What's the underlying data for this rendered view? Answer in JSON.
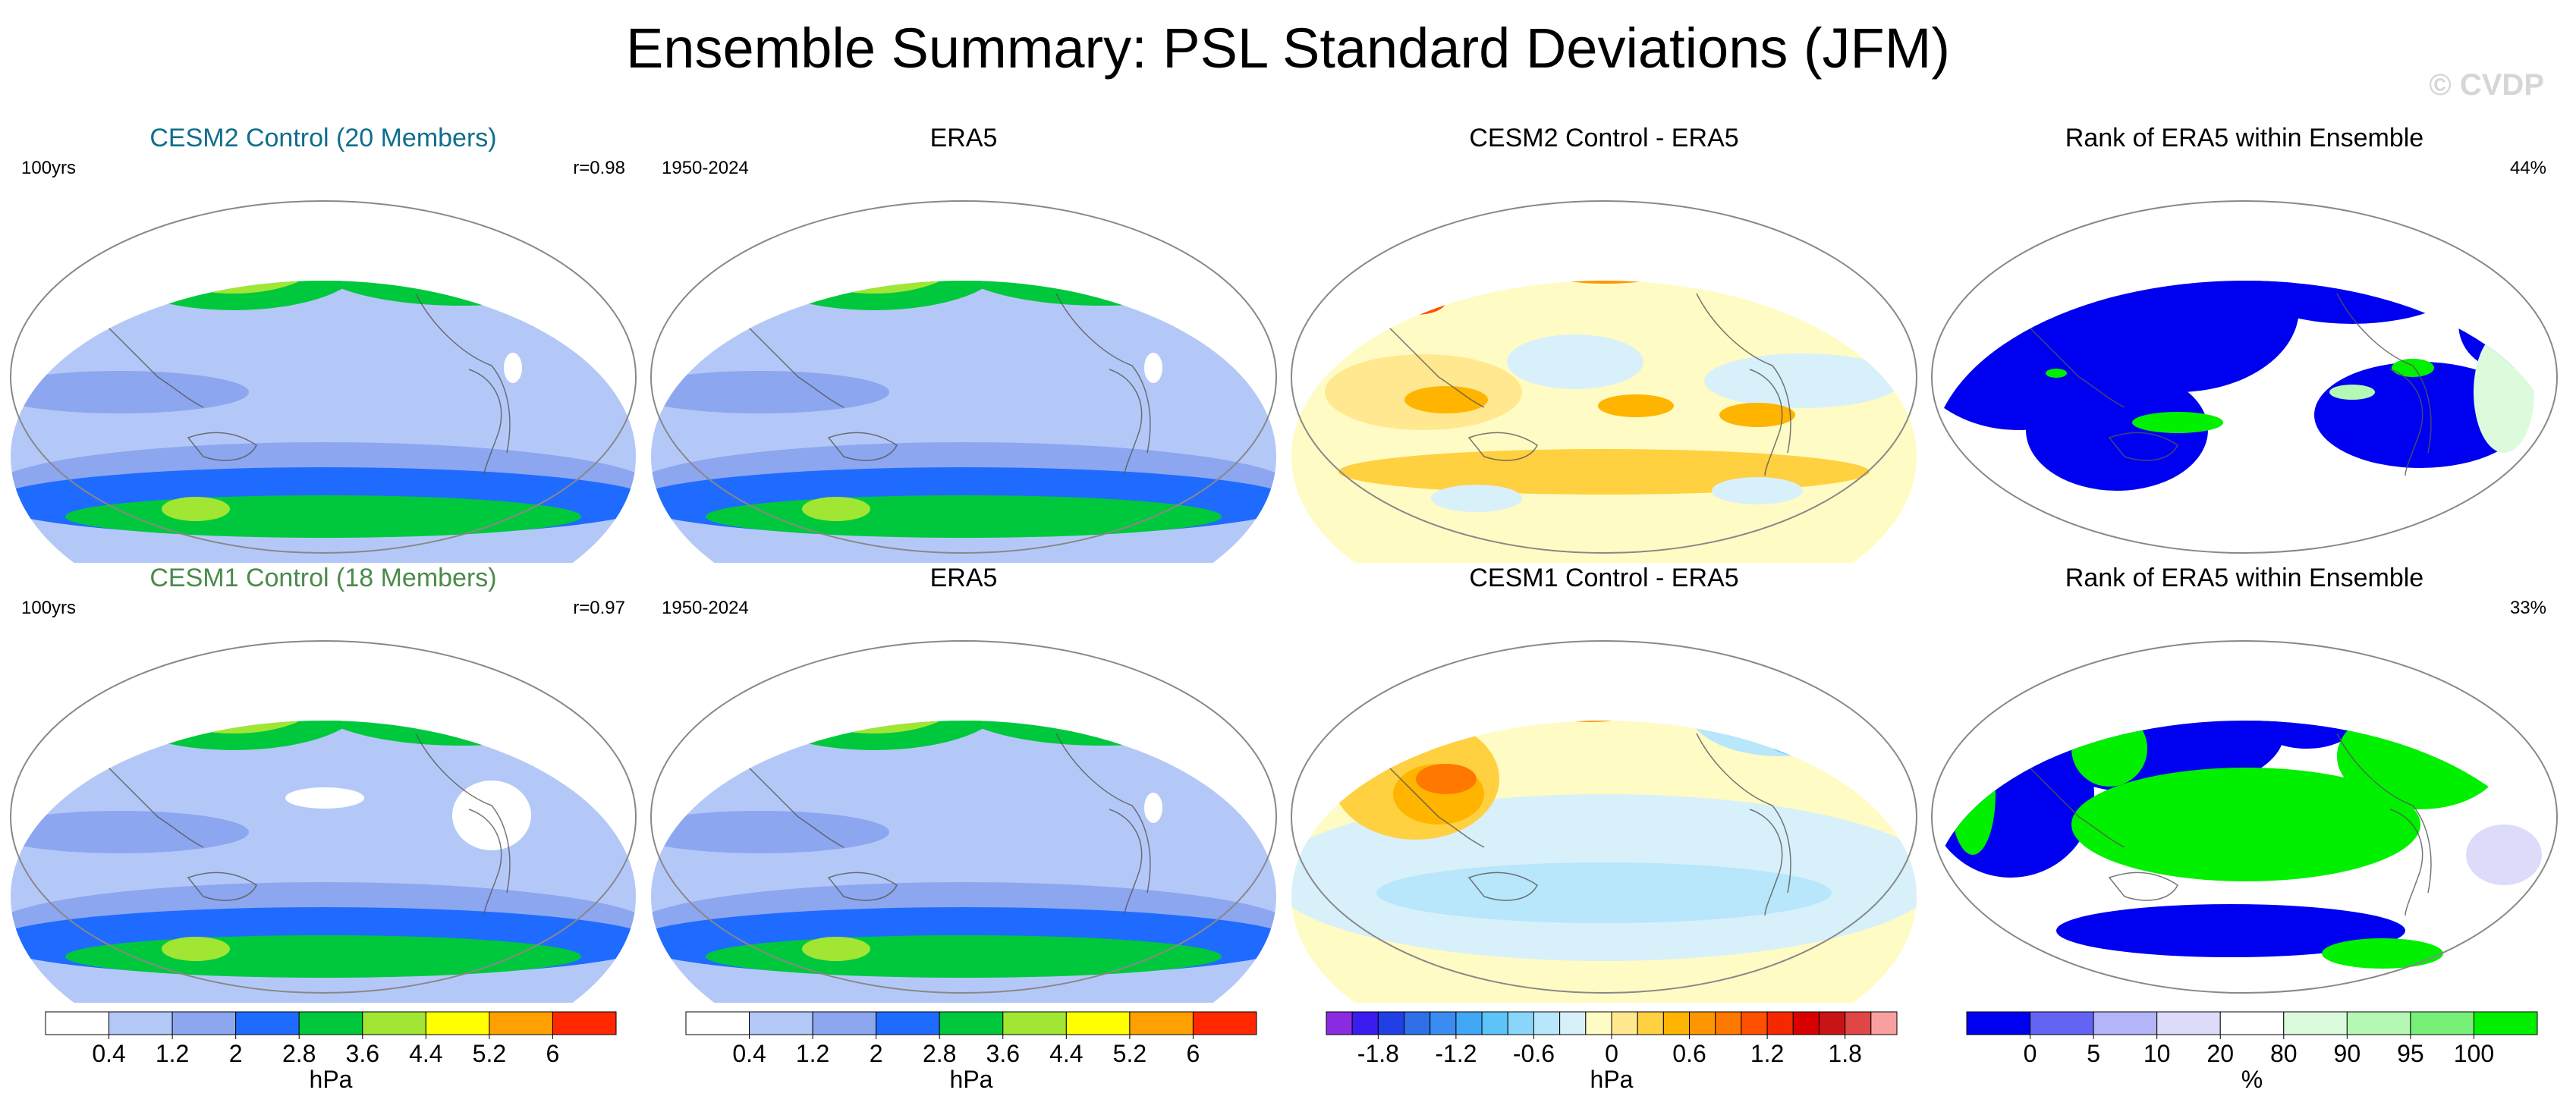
{
  "figure": {
    "title": "Ensemble Summary: PSL Standard Deviations (JFM)",
    "watermark": "© CVDP"
  },
  "chart_data": [
    {
      "type": "heatmap",
      "map": "mean-std",
      "title": "CESM2 Control (20 Members)",
      "title_color": "#0e6e8c",
      "left_label": "100yrs",
      "right_label": "r=0.98",
      "units": "hPa"
    },
    {
      "type": "heatmap",
      "map": "mean-std",
      "title": "ERA5",
      "title_color": "#000000",
      "left_label": "1950-2024",
      "right_label": "",
      "units": "hPa"
    },
    {
      "type": "heatmap",
      "map": "difference",
      "title": "CESM2 Control - ERA5",
      "title_color": "#000000",
      "left_label": "",
      "right_label": "",
      "units": "hPa"
    },
    {
      "type": "heatmap",
      "map": "rank",
      "title": "Rank of ERA5 within Ensemble",
      "title_color": "#000000",
      "left_label": "",
      "right_label": "44%",
      "units": "%"
    },
    {
      "type": "heatmap",
      "map": "mean-std",
      "title": "CESM1 Control (18 Members)",
      "title_color": "#4a8a4a",
      "left_label": "100yrs",
      "right_label": "r=0.97",
      "units": "hPa"
    },
    {
      "type": "heatmap",
      "map": "mean-std",
      "title": "ERA5",
      "title_color": "#000000",
      "left_label": "1950-2024",
      "right_label": "",
      "units": "hPa"
    },
    {
      "type": "heatmap",
      "map": "difference",
      "title": "CESM1 Control - ERA5",
      "title_color": "#000000",
      "left_label": "",
      "right_label": "",
      "units": "hPa"
    },
    {
      "type": "heatmap",
      "map": "rank",
      "title": "Rank of ERA5 within Ensemble",
      "title_color": "#000000",
      "left_label": "",
      "right_label": "33%",
      "units": "%"
    }
  ],
  "colorbars": [
    {
      "units": "hPa",
      "colors": [
        "#ffffff",
        "#b4c8f8",
        "#8ca6f0",
        "#1f6bff",
        "#00c83c",
        "#a0e632",
        "#ffff00",
        "#ffa000",
        "#ff2800"
      ],
      "ticks": [
        {
          "label": "0.4",
          "pos": 1
        },
        {
          "label": "1.2",
          "pos": 2
        },
        {
          "label": "2",
          "pos": 3
        },
        {
          "label": "2.8",
          "pos": 4
        },
        {
          "label": "3.6",
          "pos": 5
        },
        {
          "label": "4.4",
          "pos": 6
        },
        {
          "label": "5.2",
          "pos": 7
        },
        {
          "label": "6",
          "pos": 8
        }
      ]
    },
    {
      "units": "hPa",
      "colors": [
        "#ffffff",
        "#b4c8f8",
        "#8ca6f0",
        "#1f6bff",
        "#00c83c",
        "#a0e632",
        "#ffff00",
        "#ffa000",
        "#ff2800"
      ],
      "ticks": [
        {
          "label": "0.4",
          "pos": 1
        },
        {
          "label": "1.2",
          "pos": 2
        },
        {
          "label": "2",
          "pos": 3
        },
        {
          "label": "2.8",
          "pos": 4
        },
        {
          "label": "3.6",
          "pos": 5
        },
        {
          "label": "4.4",
          "pos": 6
        },
        {
          "label": "5.2",
          "pos": 7
        },
        {
          "label": "6",
          "pos": 8
        }
      ]
    },
    {
      "units": "hPa",
      "colors": [
        "#8a2be2",
        "#3a1cf0",
        "#2040e6",
        "#2f6fe8",
        "#3a8cf0",
        "#40a8f5",
        "#5cc4f8",
        "#8ad6fa",
        "#b8e6fb",
        "#d8f0fa",
        "#fffbc4",
        "#ffe890",
        "#ffd040",
        "#ffb400",
        "#ff9600",
        "#ff7800",
        "#ff5000",
        "#f52800",
        "#d80000",
        "#c81414",
        "#e04646",
        "#f8a0a0"
      ],
      "ticks": [
        {
          "label": "-1.8",
          "pos": 2
        },
        {
          "label": "-1.2",
          "pos": 5
        },
        {
          "label": "-0.6",
          "pos": 8
        },
        {
          "label": "0",
          "pos": 11
        },
        {
          "label": "0.6",
          "pos": 14
        },
        {
          "label": "1.2",
          "pos": 17
        },
        {
          "label": "1.8",
          "pos": 20
        }
      ]
    },
    {
      "units": "%",
      "colors": [
        "#0000f0",
        "#6464f4",
        "#b4b4f8",
        "#dcdcfa",
        "#ffffff",
        "#dcfadc",
        "#b4f8b4",
        "#78f078",
        "#00f000"
      ],
      "ticks": [
        {
          "label": "0",
          "pos": 1
        },
        {
          "label": "5",
          "pos": 2
        },
        {
          "label": "10",
          "pos": 3
        },
        {
          "label": "20",
          "pos": 4
        },
        {
          "label": "80",
          "pos": 5
        },
        {
          "label": "90",
          "pos": 6
        },
        {
          "label": "95",
          "pos": 7
        },
        {
          "label": "100",
          "pos": 8
        }
      ]
    }
  ]
}
